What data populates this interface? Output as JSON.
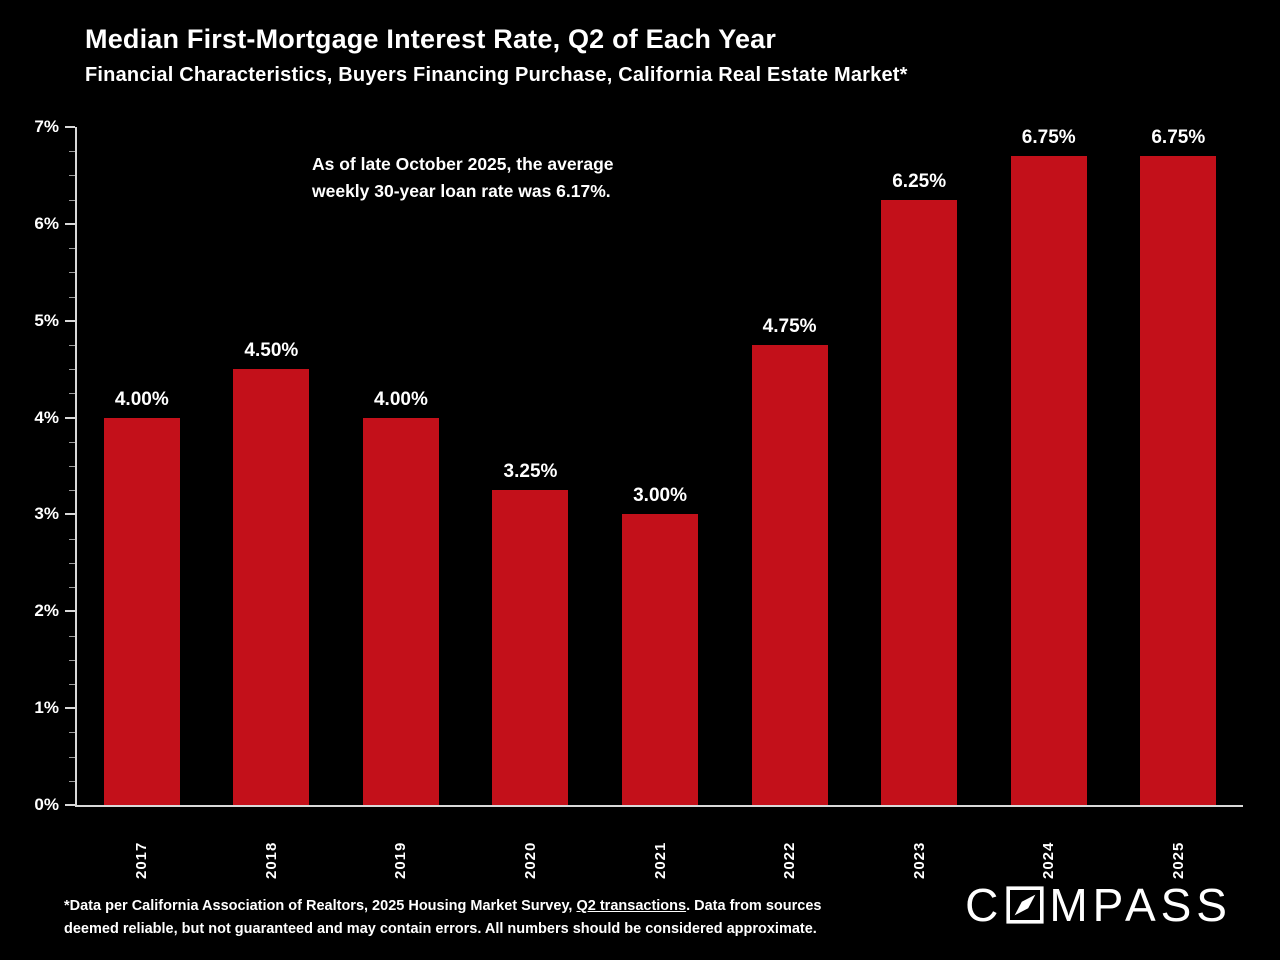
{
  "chart_data": {
    "type": "bar",
    "title": "Median First-Mortgage Interest Rate, Q2 of Each Year",
    "subtitle": "Financial Characteristics, Buyers Financing Purchase, California Real Estate Market*",
    "categories": [
      "2017",
      "2018",
      "2019",
      "2020",
      "2021",
      "2022",
      "2023",
      "2024",
      "2025"
    ],
    "values": [
      4.0,
      4.5,
      4.0,
      3.25,
      3.0,
      4.75,
      6.25,
      6.75,
      6.75
    ],
    "value_labels": [
      "4.00%",
      "4.50%",
      "4.00%",
      "3.25%",
      "3.00%",
      "4.75%",
      "6.25%",
      "6.75%",
      "6.75%"
    ],
    "xlabel": "",
    "ylabel": "",
    "ylim": [
      0,
      7
    ],
    "ytick_labels": [
      "0%",
      "1%",
      "2%",
      "3%",
      "4%",
      "5%",
      "6%",
      "7%"
    ],
    "grid": false,
    "legend": "none",
    "bar_color": "#C3101A",
    "background_color": "#000000",
    "axis_color": "#D9D9D9",
    "text_color": "#FFFFFF",
    "annotation": {
      "lines": [
        "As of late October 2025, the average",
        "weekly 30-year loan rate was 6.17%."
      ]
    }
  },
  "footnote": {
    "line1_prefix": "*Data per California Association of Realtors, 2025 Housing Market Survey, ",
    "line1_link": "Q2 transactions",
    "line1_suffix": ". Data from sources",
    "line2": "deemed reliable, but not guaranteed and may contain errors. All numbers should be considered approximate."
  },
  "logo": {
    "name": "COMPASS",
    "part1": "C",
    "part2": "MPASS"
  }
}
